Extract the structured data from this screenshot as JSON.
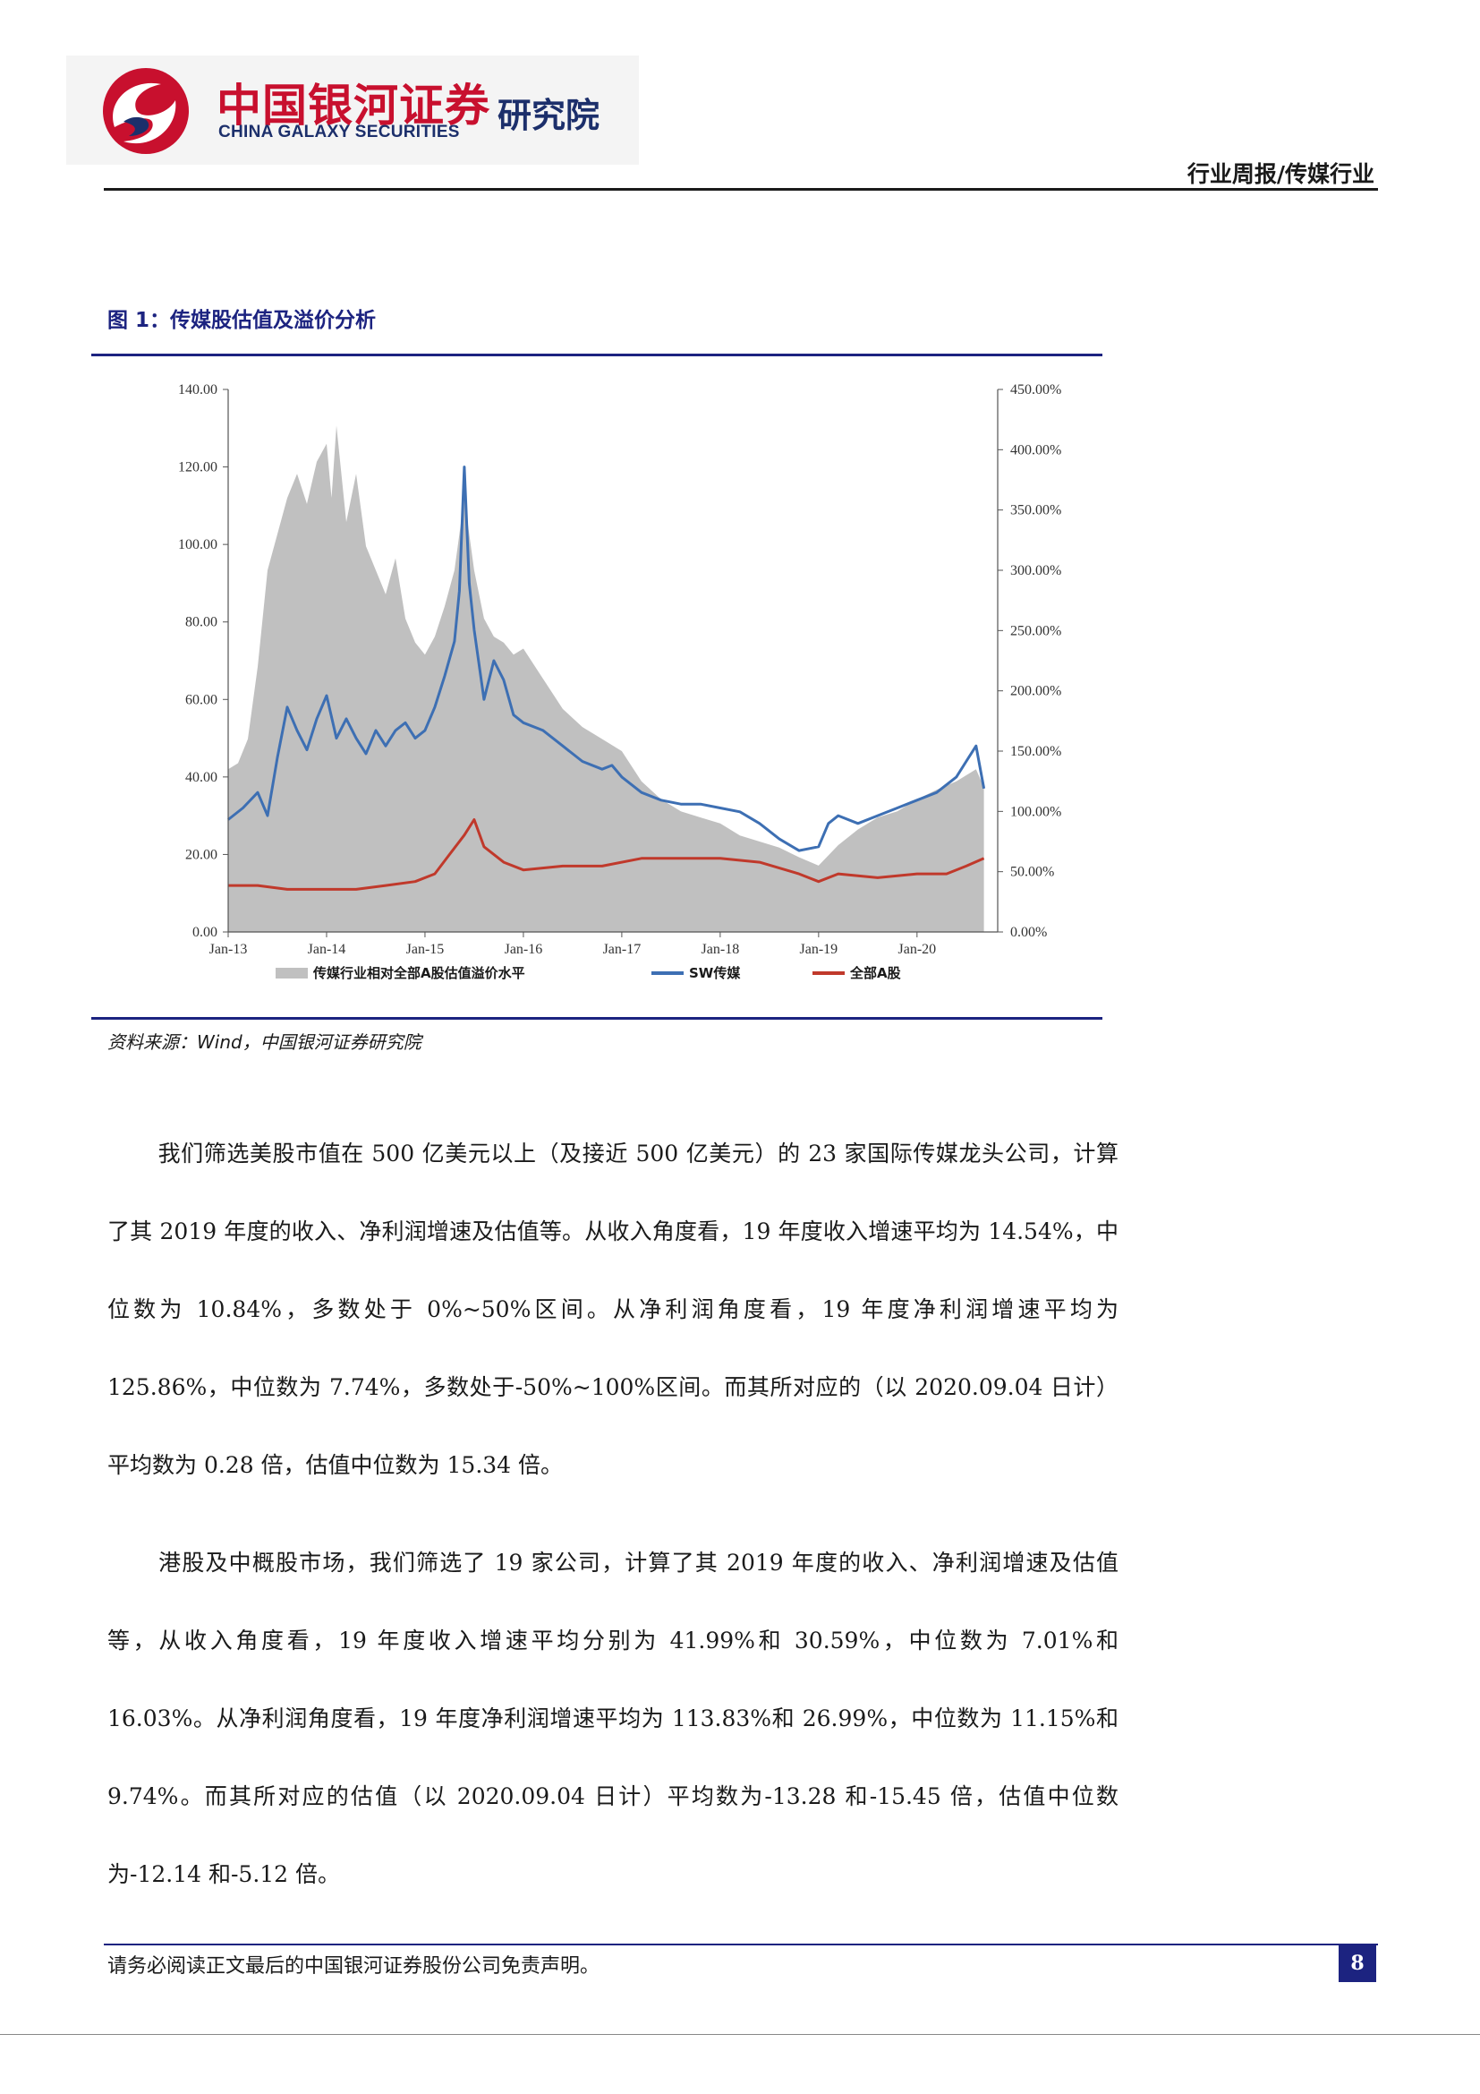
{
  "header": {
    "logo_cn": "中国银河证券",
    "logo_en": "CHINA GALAXY SECURITIES",
    "logo_institute": "研究院",
    "report_type": "行业周报/传媒行业"
  },
  "figure": {
    "title": "图 1：传媒股估值及溢价分析",
    "source": "资料来源：Wind，中国银河证券研究院"
  },
  "chart_data": {
    "type": "line",
    "title": "",
    "x_ticks": [
      "Jan-13",
      "Jan-14",
      "Jan-15",
      "Jan-16",
      "Jan-17",
      "Jan-18",
      "Jan-19",
      "Jan-20"
    ],
    "left_axis": {
      "ylim": [
        0,
        140
      ],
      "ticks": [
        "0.00",
        "20.00",
        "40.00",
        "60.00",
        "80.00",
        "100.00",
        "120.00",
        "140.00"
      ]
    },
    "right_axis": {
      "ylim": [
        0,
        450
      ],
      "ticks": [
        "0.00%",
        "50.00%",
        "100.00%",
        "150.00%",
        "200.00%",
        "250.00%",
        "300.00%",
        "350.00%",
        "400.00%",
        "450.00%"
      ]
    },
    "grid": false,
    "legend_position": "bottom",
    "series": [
      {
        "name": "传媒行业相对全部A股估值溢价水平",
        "kind": "area",
        "axis": "right",
        "color": "#c0c0c0",
        "x": [
          2013.0,
          2013.1,
          2013.2,
          2013.3,
          2013.4,
          2013.5,
          2013.6,
          2013.7,
          2013.8,
          2013.9,
          2014.0,
          2014.05,
          2014.1,
          2014.2,
          2014.3,
          2014.4,
          2014.5,
          2014.6,
          2014.7,
          2014.8,
          2014.9,
          2015.0,
          2015.1,
          2015.2,
          2015.3,
          2015.4,
          2015.5,
          2015.6,
          2015.7,
          2015.8,
          2015.9,
          2016.0,
          2016.2,
          2016.4,
          2016.6,
          2016.8,
          2017.0,
          2017.2,
          2017.4,
          2017.6,
          2017.8,
          2018.0,
          2018.2,
          2018.4,
          2018.6,
          2018.8,
          2019.0,
          2019.2,
          2019.4,
          2019.6,
          2019.8,
          2020.0,
          2020.2,
          2020.4,
          2020.6,
          2020.68
        ],
        "values": [
          135,
          140,
          160,
          220,
          300,
          330,
          360,
          380,
          355,
          390,
          405,
          360,
          420,
          340,
          380,
          320,
          300,
          280,
          310,
          260,
          240,
          230,
          245,
          270,
          300,
          360,
          300,
          260,
          245,
          240,
          230,
          235,
          210,
          185,
          170,
          160,
          150,
          125,
          110,
          100,
          95,
          90,
          80,
          75,
          70,
          62,
          55,
          72,
          85,
          95,
          100,
          110,
          118,
          125,
          135,
          120
        ]
      },
      {
        "name": "SW传媒",
        "kind": "line",
        "axis": "left",
        "color": "#3d6fb3",
        "x": [
          2013.0,
          2013.15,
          2013.3,
          2013.4,
          2013.5,
          2013.6,
          2013.7,
          2013.8,
          2013.9,
          2014.0,
          2014.1,
          2014.2,
          2014.3,
          2014.4,
          2014.5,
          2014.6,
          2014.7,
          2014.8,
          2014.9,
          2015.0,
          2015.1,
          2015.2,
          2015.3,
          2015.35,
          2015.4,
          2015.45,
          2015.5,
          2015.6,
          2015.7,
          2015.8,
          2015.9,
          2016.0,
          2016.2,
          2016.4,
          2016.6,
          2016.8,
          2016.9,
          2017.0,
          2017.2,
          2017.4,
          2017.6,
          2017.8,
          2018.0,
          2018.2,
          2018.4,
          2018.6,
          2018.8,
          2019.0,
          2019.1,
          2019.2,
          2019.4,
          2019.6,
          2019.8,
          2020.0,
          2020.2,
          2020.4,
          2020.5,
          2020.6,
          2020.68
        ],
        "values": [
          29,
          32,
          36,
          30,
          45,
          58,
          52,
          47,
          55,
          61,
          50,
          55,
          50,
          46,
          52,
          48,
          52,
          54,
          50,
          52,
          58,
          66,
          75,
          88,
          120,
          90,
          78,
          60,
          70,
          65,
          56,
          54,
          52,
          48,
          44,
          42,
          43,
          40,
          36,
          34,
          33,
          33,
          32,
          31,
          28,
          24,
          21,
          22,
          28,
          30,
          28,
          30,
          32,
          34,
          36,
          40,
          44,
          48,
          37
        ]
      },
      {
        "name": "全部A股",
        "kind": "line",
        "axis": "left",
        "color": "#c0392b",
        "x": [
          2013.0,
          2013.3,
          2013.6,
          2014.0,
          2014.3,
          2014.6,
          2014.9,
          2015.1,
          2015.25,
          2015.4,
          2015.5,
          2015.6,
          2015.8,
          2016.0,
          2016.4,
          2016.8,
          2017.2,
          2017.6,
          2018.0,
          2018.4,
          2018.8,
          2019.0,
          2019.2,
          2019.6,
          2020.0,
          2020.3,
          2020.5,
          2020.68
        ],
        "values": [
          12,
          12,
          11,
          11,
          11,
          12,
          13,
          15,
          20,
          25,
          29,
          22,
          18,
          16,
          17,
          17,
          19,
          19,
          19,
          18,
          15,
          13,
          15,
          14,
          15,
          15,
          17,
          19
        ]
      }
    ]
  },
  "body": {
    "para1": "我们筛选美股市值在 500 亿美元以上（及接近 500 亿美元）的 23 家国际传媒龙头公司，计算了其 2019 年度的收入、净利润增速及估值等。从收入角度看，19 年度收入增速平均为 14.54%，中位数为 10.84%，多数处于 0%~50%区间。从净利润角度看，19 年度净利润增速平均为 125.86%，中位数为 7.74%，多数处于-50%~100%区间。而其所对应的（以 2020.09.04 日计）平均数为 0.28 倍，估值中位数为 15.34 倍。",
    "para2": "港股及中概股市场，我们筛选了 19 家公司，计算了其 2019 年度的收入、净利润增速及估值等，从收入角度看，19 年度收入增速平均分别为 41.99%和 30.59%，中位数为 7.01%和 16.03%。从净利润角度看，19 年度净利润增速平均为 113.83%和 26.99%，中位数为 11.15%和 9.74%。而其所对应的估值（以 2020.09.04 日计）平均数为-13.28 和-15.45 倍，估值中位数为-12.14 和-5.12 倍。"
  },
  "footer": {
    "disclaimer": "请务必阅读正文最后的中国银河证券股份公司免责声明。",
    "page_number": "8"
  }
}
